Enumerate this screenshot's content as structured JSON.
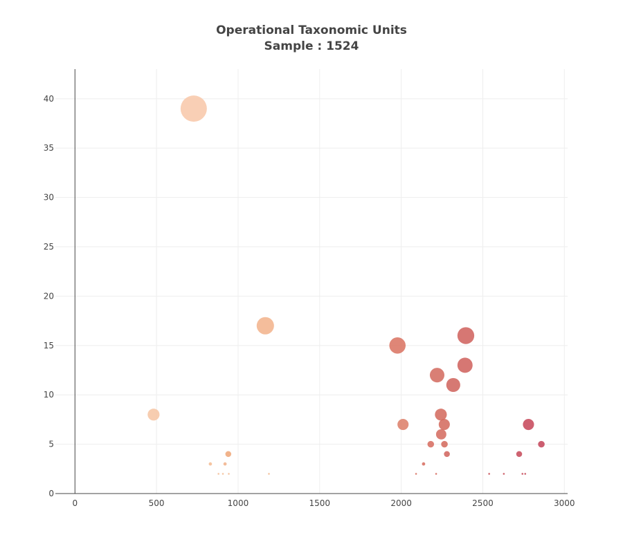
{
  "chart_data": {
    "type": "scatter",
    "title_lines": [
      "Operational Taxonomic Units",
      "Sample : 1524"
    ],
    "xlabel": "",
    "ylabel": "",
    "xlim": [
      -120,
      3020
    ],
    "ylim": [
      0,
      43
    ],
    "x_ticks": [
      0,
      500,
      1000,
      1500,
      2000,
      2500,
      3000
    ],
    "y_ticks": [
      0,
      5,
      10,
      15,
      20,
      25,
      30,
      35,
      40
    ],
    "grid": true,
    "legend": "none",
    "bubble_style": "size proportional to value, color varies with otu id",
    "points": [
      {
        "x": 482,
        "y": 8,
        "color": "#f6c4a2"
      },
      {
        "x": 728,
        "y": 39,
        "color": "#f8c7a8"
      },
      {
        "x": 830,
        "y": 3,
        "color": "#f3bb92"
      },
      {
        "x": 880,
        "y": 2,
        "color": "#f4be98"
      },
      {
        "x": 907,
        "y": 2,
        "color": "#f4be98"
      },
      {
        "x": 920,
        "y": 3,
        "color": "#f1b088"
      },
      {
        "x": 940,
        "y": 4,
        "color": "#efa677"
      },
      {
        "x": 943,
        "y": 2,
        "color": "#f4be98"
      },
      {
        "x": 1167,
        "y": 17,
        "color": "#f2b18a"
      },
      {
        "x": 1189,
        "y": 2,
        "color": "#f3bb92"
      },
      {
        "x": 1977,
        "y": 15,
        "color": "#d9715f"
      },
      {
        "x": 2011,
        "y": 7,
        "color": "#dc7c66"
      },
      {
        "x": 2091,
        "y": 2,
        "color": "#d87262"
      },
      {
        "x": 2137,
        "y": 3,
        "color": "#d66a5d"
      },
      {
        "x": 2181,
        "y": 5,
        "color": "#d66a5d"
      },
      {
        "x": 2214,
        "y": 2,
        "color": "#d66a5d"
      },
      {
        "x": 2220,
        "y": 12,
        "color": "#d2685d"
      },
      {
        "x": 2243,
        "y": 8,
        "color": "#d2675b"
      },
      {
        "x": 2245,
        "y": 6,
        "color": "#d4695d"
      },
      {
        "x": 2264,
        "y": 7,
        "color": "#d2675b"
      },
      {
        "x": 2265,
        "y": 5,
        "color": "#d2675b"
      },
      {
        "x": 2280,
        "y": 4,
        "color": "#d0625a"
      },
      {
        "x": 2319,
        "y": 11,
        "color": "#cf615a"
      },
      {
        "x": 2391,
        "y": 13,
        "color": "#cf5f5a"
      },
      {
        "x": 2396,
        "y": 16,
        "color": "#cf5f5a"
      },
      {
        "x": 2539,
        "y": 2,
        "color": "#c95058"
      },
      {
        "x": 2629,
        "y": 2,
        "color": "#c84e58"
      },
      {
        "x": 2723,
        "y": 4,
        "color": "#c64858"
      },
      {
        "x": 2743,
        "y": 2,
        "color": "#c64858"
      },
      {
        "x": 2760,
        "y": 2,
        "color": "#c64858"
      },
      {
        "x": 2780,
        "y": 7,
        "color": "#c54457"
      },
      {
        "x": 2859,
        "y": 5,
        "color": "#c34257"
      }
    ]
  }
}
